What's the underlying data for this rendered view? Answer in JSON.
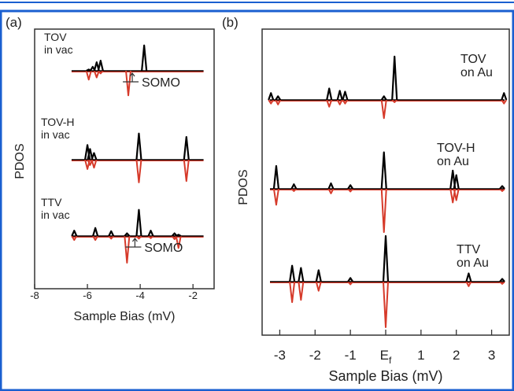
{
  "colors": {
    "border": "#1a5fd0",
    "spin_up": "#000000",
    "spin_down": "#d63a2a",
    "axis": "#333333"
  },
  "panels": {
    "a": {
      "label": "(a)"
    },
    "b": {
      "label": "(b)"
    }
  },
  "chart_data": [
    {
      "type": "line",
      "panel": "(a)",
      "xlabel": "Sample Bias (mV)",
      "ylabel": "PDOS",
      "xlim": [
        -8,
        -1.2
      ],
      "xticks": [
        "-8",
        "-6",
        "-4",
        "-2"
      ],
      "xtick_values": [
        -8,
        -6,
        -4,
        -2
      ],
      "up_color": "#000000",
      "down_color": "#d63a2a",
      "annotation": "SOMO",
      "traces": [
        {
          "label_lines": [
            "TOV",
            "in vac"
          ],
          "x_range": [
            -6.6,
            -1.6
          ],
          "spikes": [
            {
              "x": -5.8,
              "up": 0.15,
              "down": 0
            },
            {
              "x": -5.65,
              "up": 0.32,
              "down": 0.25
            },
            {
              "x": -5.5,
              "up": 0.38,
              "down": 0.1
            },
            {
              "x": -5.95,
              "up": 0.05,
              "down": 0.33
            },
            {
              "x": -4.45,
              "up": 0,
              "down": 0.92
            },
            {
              "x": -3.85,
              "up": 0.95,
              "down": 0
            }
          ],
          "somo_x": -4.3
        },
        {
          "label_lines": [
            "TOV-H",
            "in vac"
          ],
          "x_range": [
            -6.6,
            -1.6
          ],
          "spikes": [
            {
              "x": -6.0,
              "up": 0.55,
              "down": 0.35
            },
            {
              "x": -5.9,
              "up": 0.4,
              "down": 0.2
            },
            {
              "x": -5.75,
              "up": 0.25,
              "down": 0.3
            },
            {
              "x": -4.05,
              "up": 0.98,
              "down": 0.85
            },
            {
              "x": -2.25,
              "up": 0.85,
              "down": 0.8
            }
          ]
        },
        {
          "label_lines": [
            "TTV",
            "in vac"
          ],
          "x_range": [
            -6.6,
            -1.6
          ],
          "spikes": [
            {
              "x": -6.5,
              "up": 0.2,
              "down": 0.15
            },
            {
              "x": -5.7,
              "up": 0.3,
              "down": 0.15
            },
            {
              "x": -5.1,
              "up": 0.18,
              "down": 0.1
            },
            {
              "x": -4.5,
              "up": 0.1,
              "down": 1.0
            },
            {
              "x": -4.05,
              "up": 0.98,
              "down": 0.1
            },
            {
              "x": -3.6,
              "up": 0.2,
              "down": 0.08
            },
            {
              "x": -2.7,
              "up": 0.1,
              "down": 0.12
            },
            {
              "x": -2.55,
              "up": 0.05,
              "down": 0.45
            }
          ],
          "somo_x": -4.2
        }
      ]
    },
    {
      "type": "line",
      "panel": "(b)",
      "xlabel": "Sample Bias (mV)",
      "ylabel": "PDOS",
      "xlim": [
        -3.5,
        3.5
      ],
      "xticks": [
        "-3",
        "-2",
        "-1",
        "E",
        "1",
        "2",
        "3"
      ],
      "xtick_sub": "f",
      "xtick_values": [
        -3,
        -2,
        -1,
        0,
        1,
        2,
        3
      ],
      "up_color": "#000000",
      "down_color": "#d63a2a",
      "traces": [
        {
          "label_lines": [
            "TOV",
            "on Au"
          ],
          "spikes": [
            {
              "x": -3.25,
              "up": 0.15,
              "down": 0.08
            },
            {
              "x": -3.05,
              "up": 0.08,
              "down": 0.1
            },
            {
              "x": -1.6,
              "up": 0.25,
              "down": 0.15
            },
            {
              "x": -1.3,
              "up": 0.2,
              "down": 0.1
            },
            {
              "x": -1.15,
              "up": 0.18,
              "down": 0.08
            },
            {
              "x": -0.05,
              "up": 0.08,
              "down": 0.4
            },
            {
              "x": 0.25,
              "up": 0.95,
              "down": 0.05
            },
            {
              "x": 3.35,
              "up": 0.15,
              "down": 0.08
            }
          ]
        },
        {
          "label_lines": [
            "TOV-H",
            "on Au"
          ],
          "spikes": [
            {
              "x": -3.1,
              "up": 0.5,
              "down": 0.35
            },
            {
              "x": -2.6,
              "up": 0.1,
              "down": 0.05
            },
            {
              "x": -1.55,
              "up": 0.12,
              "down": 0.1
            },
            {
              "x": -1.0,
              "up": 0.08,
              "down": 0.06
            },
            {
              "x": -0.05,
              "up": 0.8,
              "down": 0.95
            },
            {
              "x": 1.9,
              "up": 0.4,
              "down": 0.3
            },
            {
              "x": 2.0,
              "up": 0.3,
              "down": 0.25
            },
            {
              "x": 3.3,
              "up": 0.06,
              "down": 0.05
            }
          ]
        },
        {
          "label_lines": [
            "TTV",
            "on Au"
          ],
          "spikes": [
            {
              "x": -2.65,
              "up": 0.35,
              "down": 0.45
            },
            {
              "x": -2.4,
              "up": 0.3,
              "down": 0.4
            },
            {
              "x": -1.9,
              "up": 0.25,
              "down": 0.2
            },
            {
              "x": -1.0,
              "up": 0.08,
              "down": 0.06
            },
            {
              "x": 0.0,
              "up": 1.0,
              "down": 1.0
            },
            {
              "x": 2.35,
              "up": 0.18,
              "down": 0.1
            },
            {
              "x": 3.3,
              "up": 0.06,
              "down": 0.05
            }
          ]
        }
      ]
    }
  ]
}
